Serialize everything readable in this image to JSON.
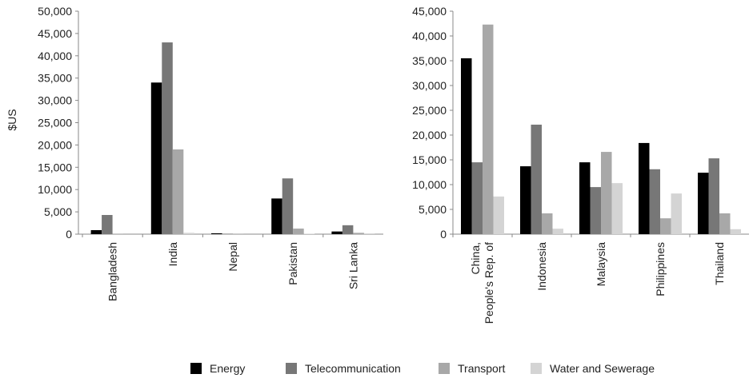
{
  "chart_data": [
    {
      "type": "bar",
      "y_label": "$US",
      "categories": [
        "Bangladesh",
        "India",
        "Nepal",
        "Pakistan",
        "Sri Lanka"
      ],
      "series": [
        {
          "name": "Energy",
          "color": "#000000",
          "values": [
            900,
            34000,
            200,
            8000,
            600
          ]
        },
        {
          "name": "Telecommunication",
          "color": "#777777",
          "values": [
            4300,
            43000,
            100,
            12500,
            2000
          ]
        },
        {
          "name": "Transport",
          "color": "#a8a8a8",
          "values": [
            50,
            19000,
            50,
            1250,
            300
          ]
        },
        {
          "name": "Water and Sewerage",
          "color": "#d4d4d4",
          "values": [
            0,
            300,
            0,
            100,
            50
          ]
        }
      ],
      "ylim": [
        0,
        50000
      ],
      "yticks": [
        0,
        {
          "value": 5000,
          "label": "5,000"
        },
        {
          "value": 10000,
          "label": "10,000"
        },
        {
          "value": 15000,
          "label": "15,000"
        },
        {
          "value": 20000,
          "label": "20,000"
        },
        {
          "value": 25000,
          "label": "25,000"
        },
        {
          "value": 30000,
          "label": "30,000"
        },
        {
          "value": 35000,
          "label": "35,000"
        },
        {
          "value": 40000,
          "label": "40,000"
        },
        {
          "value": 45000,
          "label": "45,000"
        },
        {
          "value": 50000,
          "label": "50,000"
        }
      ]
    },
    {
      "type": "bar",
      "categories": [
        "China, People's Rep. of",
        "Indonesia",
        "Malaysia",
        "Philippines",
        "Thailand"
      ],
      "series": [
        {
          "color": "#000000",
          "values": [
            35500,
            13700,
            14500,
            18400,
            12400
          ]
        },
        {
          "color": "#777777",
          "values": [
            14500,
            22100,
            9500,
            13100,
            15300
          ]
        },
        {
          "color": "#a8a8a8",
          "values": [
            42300,
            4200,
            16600,
            3200,
            4200
          ]
        },
        {
          "color": "#d4d4d4",
          "values": [
            7600,
            1100,
            10300,
            8200,
            1000
          ]
        }
      ],
      "ylim": [
        0,
        45000
      ],
      "yticks": [
        0,
        {
          "value": 5000,
          "label": "5,000"
        },
        {
          "value": 10000,
          "label": "10,000"
        },
        {
          "value": 15000,
          "label": "15,000"
        },
        {
          "value": 20000,
          "label": "20,000"
        },
        {
          "value": 25000,
          "label": "25,000"
        },
        {
          "value": 30000,
          "label": "30,000"
        },
        {
          "value": 35000,
          "label": "35,000"
        },
        {
          "value": 40000,
          "label": "40,000"
        },
        {
          "value": 45000,
          "label": "45,000"
        }
      ]
    }
  ]
}
